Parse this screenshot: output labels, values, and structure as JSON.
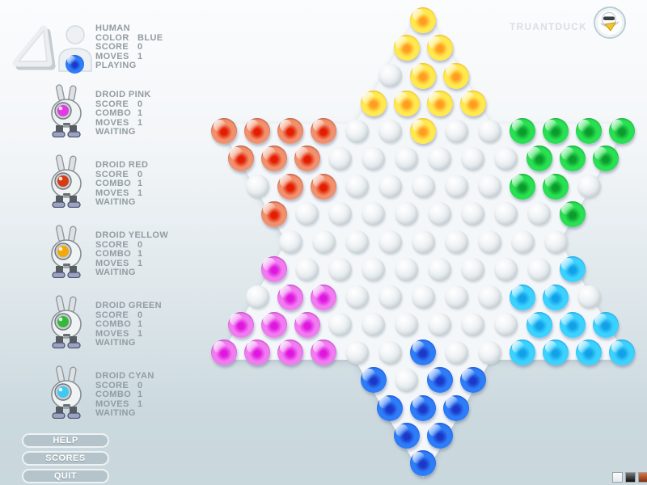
{
  "brand": {
    "name": "TRUANTDUCK",
    "badge": "duck-logo"
  },
  "human": {
    "name": "HUMAN",
    "status": "PLAYING",
    "marble": "B",
    "stats": [
      {
        "label": "COLOR",
        "value": "BLUE"
      },
      {
        "label": "SCORE",
        "value": "0"
      },
      {
        "label": "MOVES",
        "value": "1"
      }
    ]
  },
  "droids": [
    {
      "name": "DROID PINK",
      "eye": "#e23ae2",
      "marble": "M",
      "status": "WAITING",
      "stats": [
        {
          "label": "SCORE",
          "value": "0"
        },
        {
          "label": "COMBO",
          "value": "1"
        },
        {
          "label": "MOVES",
          "value": "1"
        }
      ]
    },
    {
      "name": "DROID RED",
      "eye": "#d63b14",
      "marble": "R",
      "status": "WAITING",
      "stats": [
        {
          "label": "SCORE",
          "value": "0"
        },
        {
          "label": "COMBO",
          "value": "1"
        },
        {
          "label": "MOVES",
          "value": "1"
        }
      ]
    },
    {
      "name": "DROID YELLOW",
      "eye": "#f0a80a",
      "marble": "Y",
      "status": "WAITING",
      "stats": [
        {
          "label": "SCORE",
          "value": "0"
        },
        {
          "label": "COMBO",
          "value": "1"
        },
        {
          "label": "MOVES",
          "value": "1"
        }
      ]
    },
    {
      "name": "DROID GREEN",
      "eye": "#35b83a",
      "marble": "G",
      "status": "WAITING",
      "stats": [
        {
          "label": "SCORE",
          "value": "0"
        },
        {
          "label": "COMBO",
          "value": "1"
        },
        {
          "label": "MOVES",
          "value": "1"
        }
      ]
    },
    {
      "name": "DROID CYAN",
      "eye": "#3fc8f0",
      "marble": "C",
      "status": "WAITING",
      "stats": [
        {
          "label": "SCORE",
          "value": "0"
        },
        {
          "label": "COMBO",
          "value": "1"
        },
        {
          "label": "MOVES",
          "value": "1"
        }
      ]
    }
  ],
  "menu": [
    {
      "label": "HELP"
    },
    {
      "label": "SCORES"
    },
    {
      "label": "QUIT"
    }
  ],
  "board": {
    "rows": [
      "Y",
      "YY",
      ".YY",
      "YYYY",
      "RRRR..Y..GGGG",
      "RRR......GGG",
      ".RR.....GG.",
      "R........G",
      ".........",
      "M........C",
      ".MM.....CC.",
      "MMM......CCC",
      "MMMM..B..CCCC",
      "B.BB",
      "BBB",
      "BB",
      "B"
    ],
    "legend": {
      "Y": "yellow",
      "R": "red",
      "G": "green",
      "M": "magenta",
      "C": "cyan",
      "B": "blue",
      ".": "empty"
    },
    "palette": {
      "Y": {
        "ring": "#dd8000",
        "body": "#ffe94e",
        "core": "#ff9d20"
      },
      "R": {
        "ring": "#6e1208",
        "body": "#f0906c",
        "core": "#e41c00"
      },
      "G": {
        "ring": "#075c18",
        "body": "#28e052",
        "core": "#0c9c2c"
      },
      "M": {
        "ring": "#7c0a86",
        "body": "#f07cf0",
        "core": "#e016e0"
      },
      "C": {
        "ring": "#0a62b4",
        "body": "#3cd2ff",
        "core": "#12a0e8"
      },
      "B": {
        "ring": "#101395",
        "body": "#2e7df8",
        "core": "#1b38c8"
      }
    }
  },
  "swatches": [
    {
      "name": "white",
      "from": "#fafbfc",
      "to": "#e6ebee"
    },
    {
      "name": "black",
      "from": "#7a7a7a",
      "to": "#0d0d0d"
    },
    {
      "name": "orange",
      "from": "#d9774a",
      "to": "#83300f"
    }
  ]
}
